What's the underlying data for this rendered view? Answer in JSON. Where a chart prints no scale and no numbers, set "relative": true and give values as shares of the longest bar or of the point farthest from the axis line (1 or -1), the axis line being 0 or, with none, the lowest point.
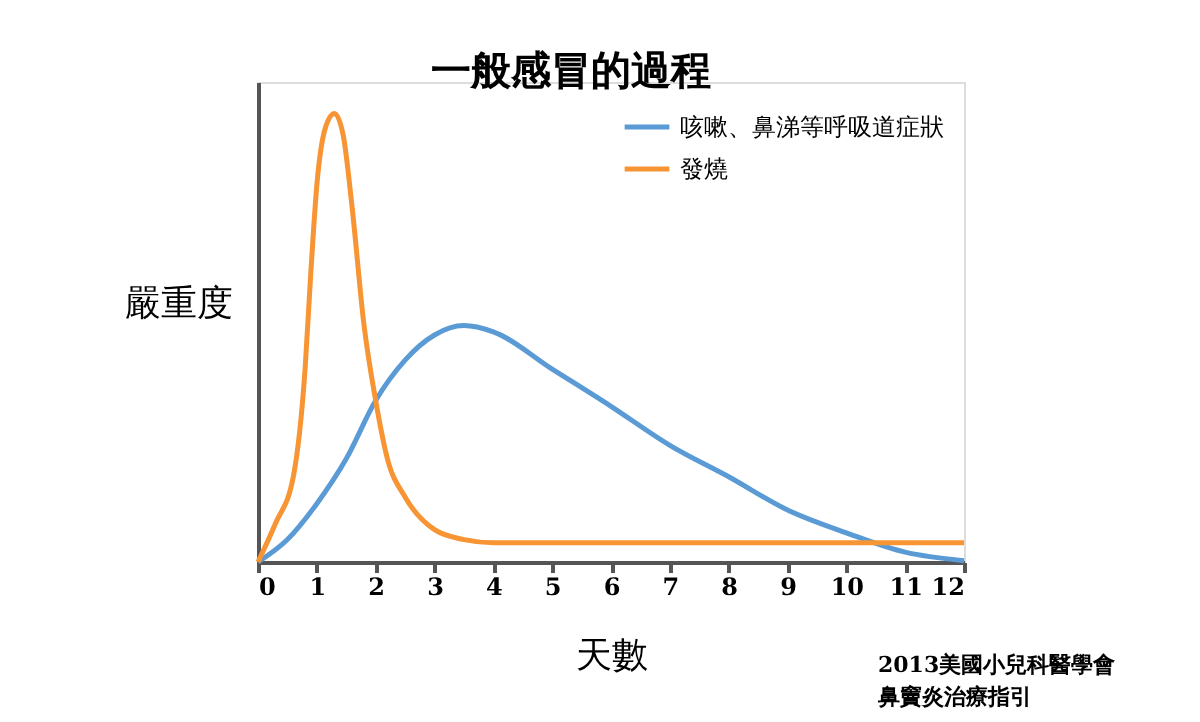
{
  "chart_data": {
    "type": "line",
    "title": "一般感冒的過程",
    "xlabel": "天數",
    "ylabel": "嚴重度",
    "relative": true,
    "xlim": [
      0,
      12
    ],
    "xticks": [
      0,
      1,
      2,
      3,
      4,
      5,
      6,
      7,
      8,
      9,
      10,
      11,
      12
    ],
    "grid": false,
    "legend": "top right",
    "marker": "none",
    "line_style": "solid",
    "annotations": [
      "2013美國小兒科醫學會",
      "鼻竇炎治療指引"
    ],
    "series": [
      {
        "name": "咳嗽、鼻涕等呼吸道症狀",
        "color": "#5b9bd5",
        "x": [
          0,
          0.5,
          1,
          1.5,
          2,
          2.5,
          3,
          3.5,
          4,
          5,
          6,
          7,
          8,
          9,
          10,
          11,
          12
        ],
        "values": [
          0,
          0.05,
          0.13,
          0.23,
          0.36,
          0.45,
          0.506,
          0.527,
          0.513,
          0.43,
          0.347,
          0.26,
          0.19,
          0.116,
          0.065,
          0.022,
          0.003
        ]
      },
      {
        "name": "發燒",
        "color": "#f79433",
        "x": [
          0,
          0.3,
          0.6,
          0.8,
          0.9,
          1.0,
          1.15,
          1.3,
          1.45,
          1.6,
          1.8,
          2.0,
          2.2,
          2.5,
          3.0,
          3.5,
          4.0,
          12
        ],
        "values": [
          0,
          0.087,
          0.19,
          0.43,
          0.65,
          0.84,
          0.97,
          1.0,
          0.95,
          0.79,
          0.53,
          0.36,
          0.23,
          0.145,
          0.072,
          0.05,
          0.043,
          0.043
        ]
      }
    ]
  }
}
